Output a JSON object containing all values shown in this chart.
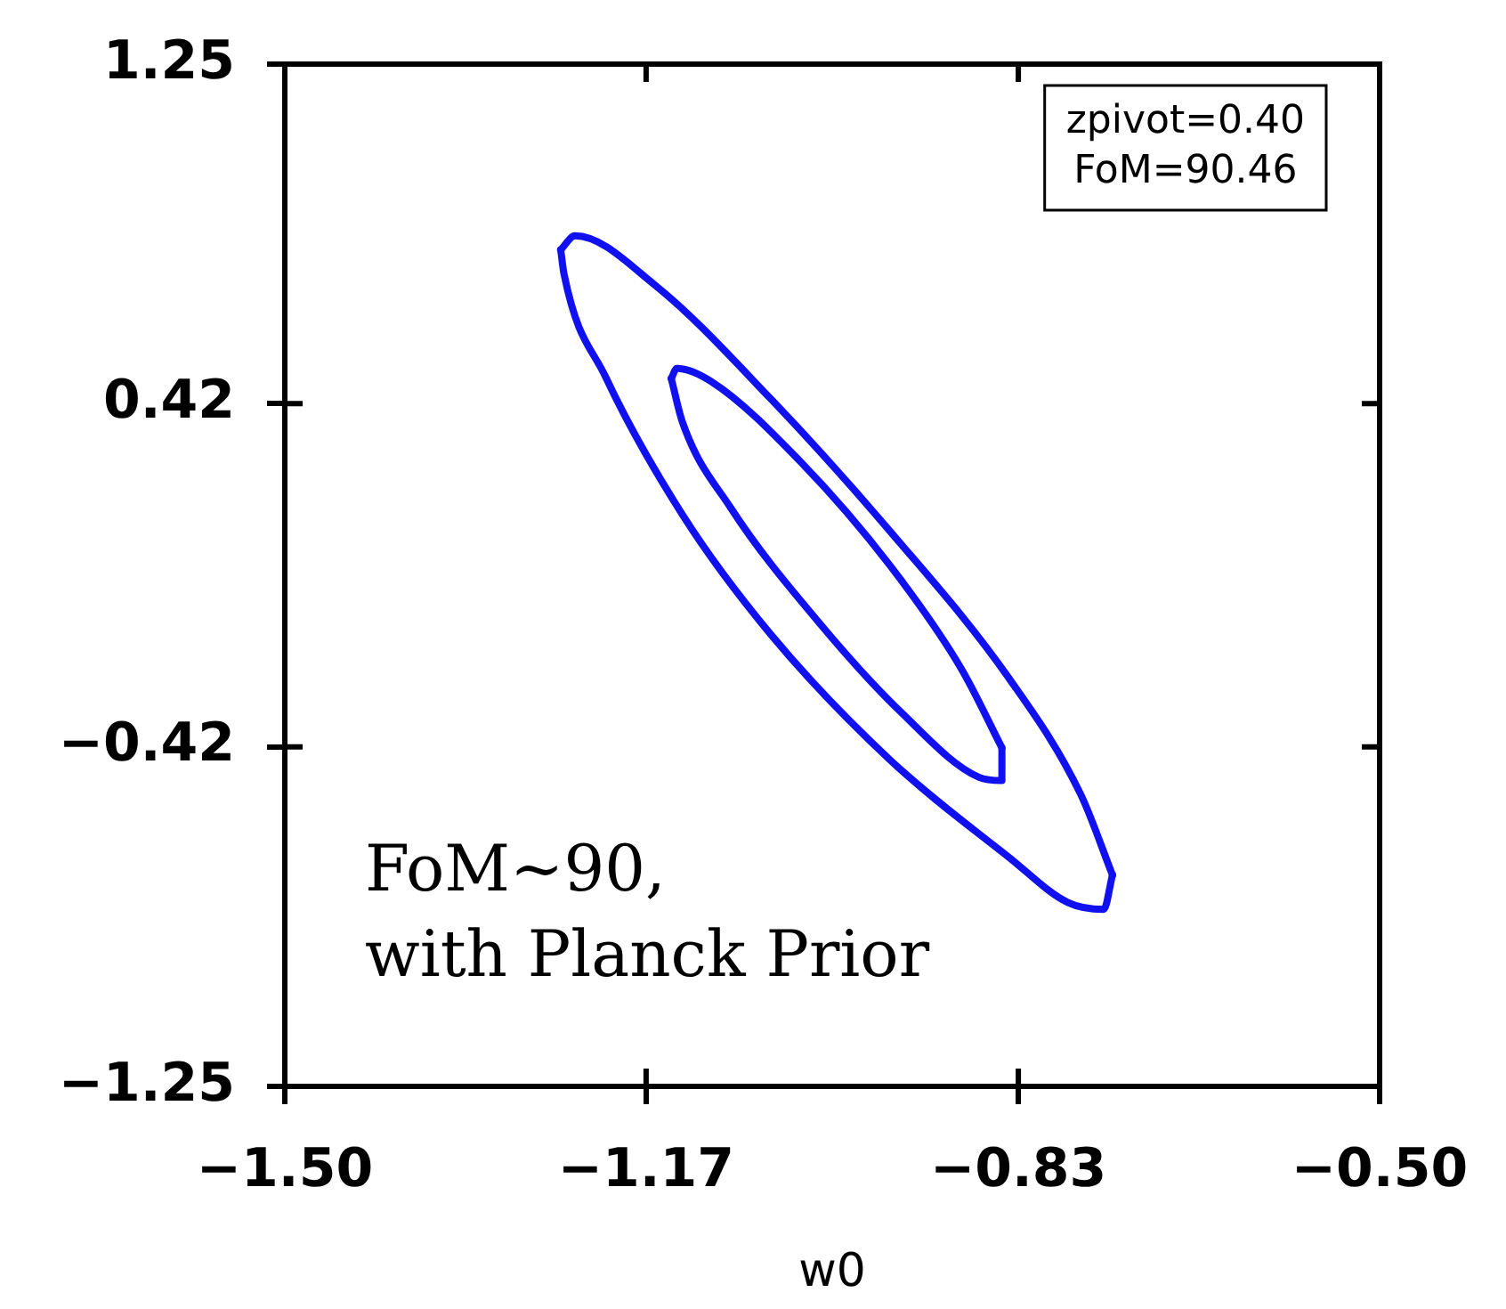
{
  "chart_data": {
    "type": "line",
    "xlabel": "w0",
    "annotations": [
      "zpivot=0.40",
      "FoM=90.46",
      "FoM~90,",
      "with Planck Prior"
    ],
    "xlim": [
      -1.5,
      -0.5
    ],
    "ylim": [
      -1.25,
      1.25
    ],
    "xticks": [
      {
        "value": -1.5,
        "label": "−1.50"
      },
      {
        "value": -1.17,
        "label": "−1.17"
      },
      {
        "value": -0.83,
        "label": "−0.83"
      },
      {
        "value": -0.5,
        "label": "−0.50"
      }
    ],
    "yticks": [
      {
        "value": -1.25,
        "label": "−1.25"
      },
      {
        "value": -0.42,
        "label": "−0.42"
      },
      {
        "value": 0.42,
        "label": "0.42"
      },
      {
        "value": 1.25,
        "label": "1.25"
      }
    ],
    "legend": false,
    "marker": "none",
    "line_style": "solid",
    "series": [
      {
        "color": "#1010f0",
        "x": [
          -1.248,
          -1.235,
          -1.163,
          -1.056,
          -0.947,
          -0.838,
          -0.773,
          -0.744
        ],
        "values": [
          0.796,
          0.83,
          0.712,
          0.431,
          0.107,
          -0.254,
          -0.536,
          -0.733
        ]
      },
      {
        "color": "#1010f0",
        "x": [
          -1.248,
          -1.245,
          -1.207,
          -1.137,
          -1.056,
          -0.947,
          -0.838,
          -0.785,
          -0.752,
          -0.744
        ],
        "values": [
          0.796,
          0.737,
          0.485,
          0.149,
          -0.145,
          -0.452,
          -0.691,
          -0.8,
          -0.817,
          -0.733
        ]
      },
      {
        "color": "#1010f0",
        "x": [
          -1.147,
          -1.142,
          -1.11,
          -1.028,
          -0.947,
          -0.882,
          -0.845
        ],
        "values": [
          0.481,
          0.506,
          0.473,
          0.275,
          0.023,
          -0.229,
          -0.422
        ]
      },
      {
        "color": "#1010f0",
        "x": [
          -1.147,
          -1.137,
          -1.093,
          -1.012,
          -0.936,
          -0.866,
          -0.845,
          -0.845
        ],
        "values": [
          0.481,
          0.376,
          0.166,
          -0.116,
          -0.338,
          -0.494,
          -0.502,
          -0.422
        ]
      }
    ]
  }
}
